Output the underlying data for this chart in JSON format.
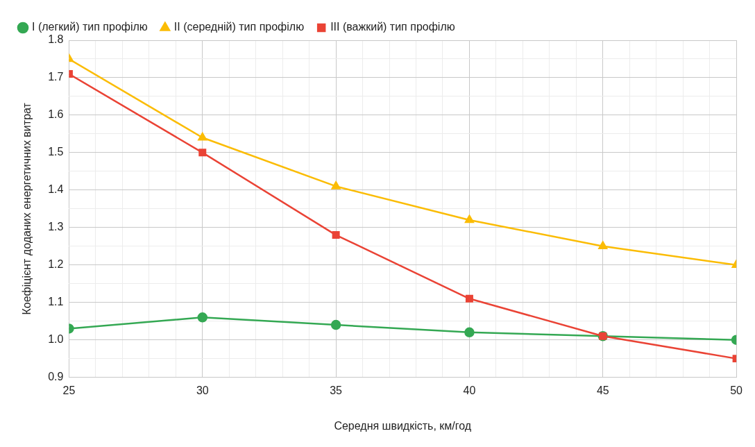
{
  "chart_data": {
    "type": "line",
    "xlabel": "Середня швидкість, км/год",
    "ylabel": "Коефіцієнт доданих енергетичних витрат",
    "x": [
      25,
      30,
      35,
      40,
      45,
      50
    ],
    "series": [
      {
        "name": "I (легкий) тип профілю",
        "color": "#34a853",
        "marker": "circle",
        "values": [
          1.03,
          1.06,
          1.04,
          1.02,
          1.01,
          1.0
        ]
      },
      {
        "name": "II (середній) тип профілю",
        "color": "#fbbc04",
        "marker": "triangle",
        "values": [
          1.75,
          1.54,
          1.41,
          1.32,
          1.25,
          1.2
        ]
      },
      {
        "name": "III (важкий) тип профілю",
        "color": "#ea4335",
        "marker": "square",
        "values": [
          1.71,
          1.5,
          1.28,
          1.11,
          1.01,
          0.95
        ]
      }
    ],
    "xlim": [
      25,
      50
    ],
    "xticks": [
      25,
      {
        "value": 26,
        "label": null
      },
      {
        "value": 27,
        "label": null
      },
      {
        "value": 28,
        "label": null
      },
      {
        "value": 29,
        "label": null
      },
      30,
      {
        "value": 31,
        "label": null
      },
      {
        "value": 32,
        "label": null
      },
      {
        "value": 33,
        "label": null
      },
      {
        "value": 34,
        "label": null
      },
      35,
      {
        "value": 36,
        "label": null
      },
      {
        "value": 37,
        "label": null
      },
      {
        "value": 38,
        "label": null
      },
      {
        "value": 39,
        "label": null
      },
      40,
      {
        "value": 41,
        "label": null
      },
      {
        "value": 42,
        "label": null
      },
      {
        "value": 43,
        "label": null
      },
      {
        "value": 44,
        "label": null
      },
      45,
      {
        "value": 46,
        "label": null
      },
      {
        "value": 47,
        "label": null
      },
      {
        "value": 48,
        "label": null
      },
      {
        "value": 49,
        "label": null
      },
      50
    ],
    "ylim": [
      0.9,
      1.8
    ],
    "yticks": [
      0.9,
      {
        "value": 0.95,
        "label": null
      },
      {
        "value": 1,
        "label": "1.0"
      },
      {
        "value": 1.05,
        "label": null
      },
      1.1,
      {
        "value": 1.15,
        "label": null
      },
      1.2,
      {
        "value": 1.25,
        "label": null
      },
      1.3,
      {
        "value": 1.35,
        "label": null
      },
      1.4,
      {
        "value": 1.45,
        "label": null
      },
      1.5,
      {
        "value": 1.55,
        "label": null
      },
      1.6,
      {
        "value": 1.65,
        "label": null
      },
      1.7,
      {
        "value": 1.75,
        "label": null
      },
      1.8
    ],
    "grid": true,
    "legend": "top",
    "line_style": "solid"
  }
}
